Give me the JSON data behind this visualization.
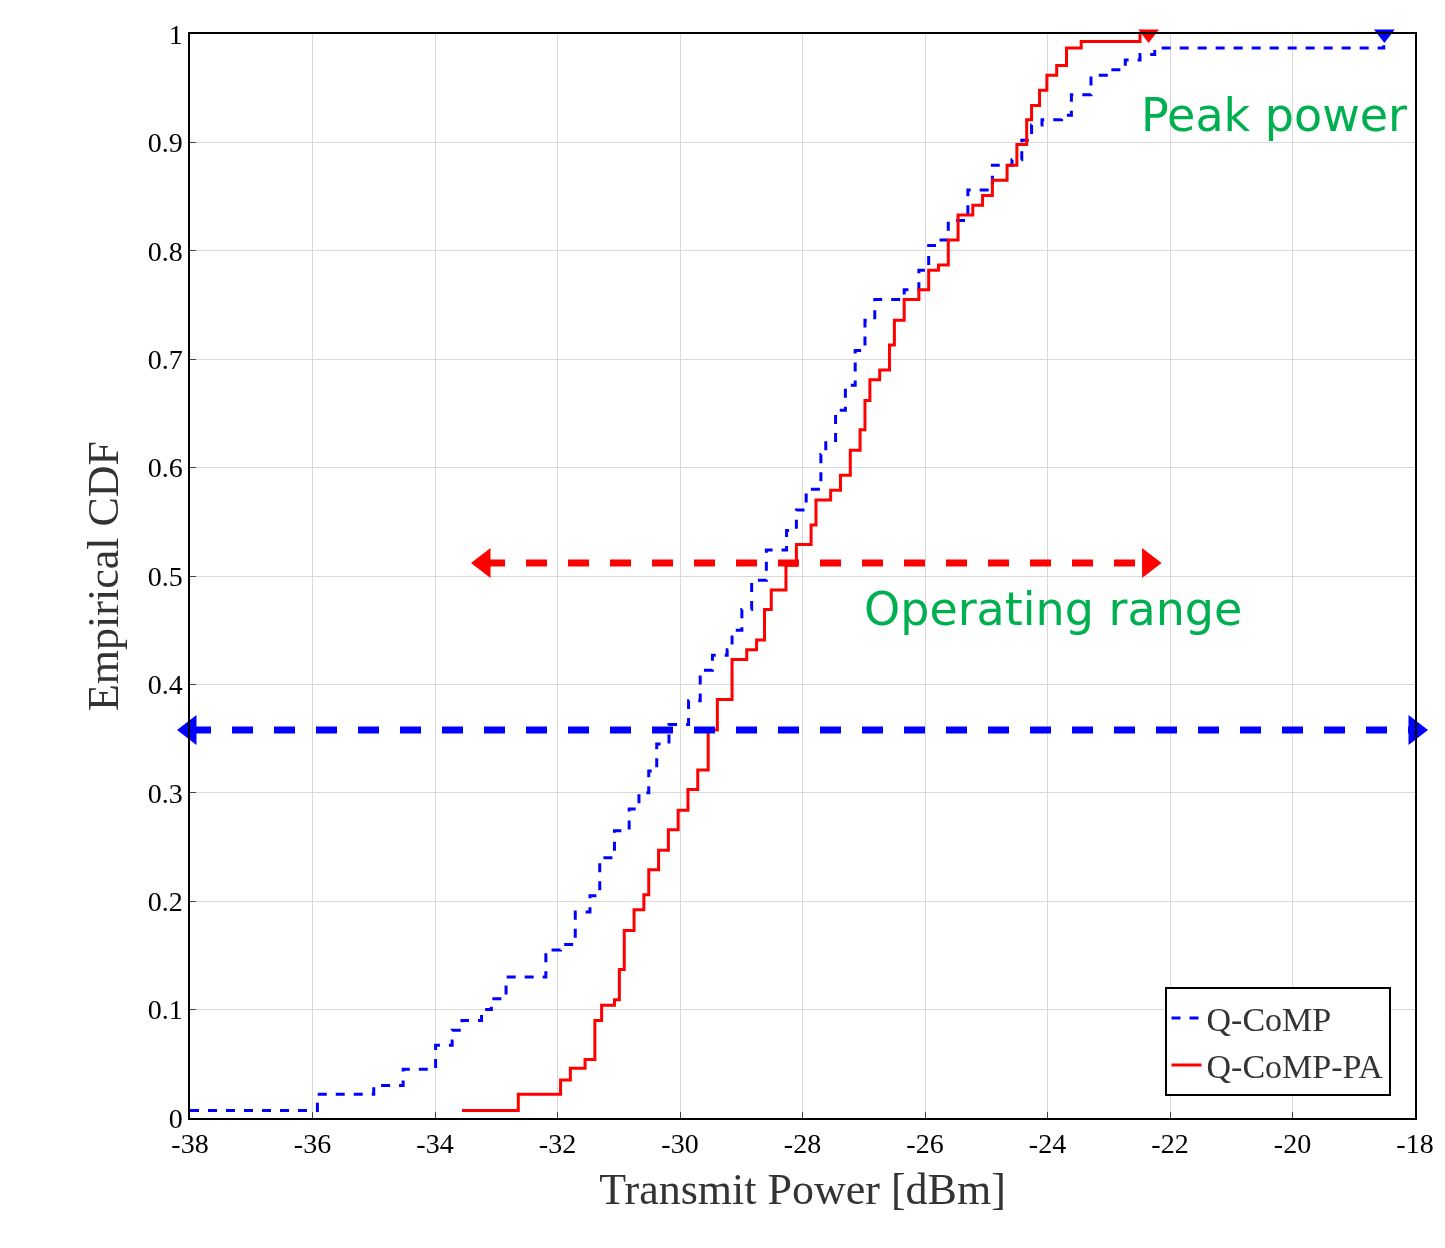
{
  "chart_data": {
    "type": "step",
    "xlabel": "Transmit Power [dBm]",
    "ylabel": "Empirical CDF",
    "xlim": [
      -38,
      -18
    ],
    "xticks": [
      -38,
      -36,
      -34,
      -32,
      -30,
      -28,
      -26,
      -24,
      -22,
      -20,
      -18
    ],
    "ylim": [
      0,
      1
    ],
    "yticks": [
      0,
      0.1,
      0.2,
      0.3,
      0.4,
      0.5,
      0.6,
      0.7,
      0.8,
      0.9,
      1
    ],
    "grid": true,
    "legend": "bottom right",
    "series": [
      {
        "name": "Q-CoMP",
        "color": "#0000ff",
        "line_style": "dashed",
        "x": [
          -38,
          -35.92,
          -35.0,
          -34.52,
          -33.99,
          -33.72,
          -33.56,
          -33.24,
          -33.08,
          -32.84,
          -32.19,
          -31.95,
          -31.71,
          -31.47,
          -31.31,
          -31.07,
          -30.83,
          -30.67,
          -30.51,
          -30.38,
          -30.18,
          -29.86,
          -29.67,
          -29.47,
          -29.23,
          -29.15,
          -28.99,
          -28.83,
          -28.59,
          -28.26,
          -28.1,
          -27.94,
          -27.7,
          -27.62,
          -27.46,
          -27.3,
          -27.14,
          -26.98,
          -26.82,
          -26.34,
          -26.1,
          -25.94,
          -25.78,
          -25.62,
          -25.3,
          -24.9,
          -24.58,
          -24.42,
          -24.26,
          -24.09,
          -23.77,
          -23.61,
          -23.29,
          -22.97,
          -22.73,
          -22.49,
          -22.25,
          -18.51
        ],
        "values": [
          0.007,
          0.022,
          0.03,
          0.045,
          0.067,
          0.081,
          0.09,
          0.1,
          0.11,
          0.13,
          0.155,
          0.16,
          0.19,
          0.205,
          0.24,
          0.265,
          0.285,
          0.3,
          0.32,
          0.345,
          0.363,
          0.385,
          0.413,
          0.427,
          0.432,
          0.45,
          0.469,
          0.496,
          0.524,
          0.542,
          0.561,
          0.58,
          0.612,
          0.625,
          0.653,
          0.676,
          0.708,
          0.736,
          0.755,
          0.764,
          0.782,
          0.805,
          0.81,
          0.828,
          0.856,
          0.879,
          0.884,
          0.902,
          0.916,
          0.921,
          0.925,
          0.944,
          0.962,
          0.967,
          0.976,
          0.981,
          0.987,
          1.0
        ]
      },
      {
        "name": "Q-CoMP-PA",
        "color": "#ff0000",
        "line_style": "solid",
        "x": [
          -33.56,
          -32.64,
          -31.95,
          -31.79,
          -31.55,
          -31.39,
          -31.28,
          -31.07,
          -30.99,
          -30.91,
          -30.75,
          -30.59,
          -30.51,
          -30.35,
          -30.19,
          -30.03,
          -29.87,
          -29.71,
          -29.54,
          -29.39,
          -29.15,
          -28.91,
          -28.75,
          -28.62,
          -28.51,
          -28.27,
          -28.1,
          -27.86,
          -27.78,
          -27.54,
          -27.38,
          -27.22,
          -27.06,
          -26.98,
          -26.9,
          -26.74,
          -26.58,
          -26.5,
          -26.34,
          -26.1,
          -25.94,
          -25.78,
          -25.62,
          -25.46,
          -25.22,
          -25.06,
          -24.9,
          -24.66,
          -24.5,
          -24.34,
          -24.26,
          -24.13,
          -24.01,
          -23.85,
          -23.69,
          -23.45,
          -22.49
        ],
        "values": [
          0.007,
          0.022,
          0.035,
          0.046,
          0.054,
          0.09,
          0.104,
          0.109,
          0.137,
          0.173,
          0.192,
          0.206,
          0.229,
          0.247,
          0.266,
          0.284,
          0.303,
          0.321,
          0.358,
          0.386,
          0.423,
          0.432,
          0.441,
          0.469,
          0.487,
          0.51,
          0.529,
          0.547,
          0.57,
          0.579,
          0.593,
          0.616,
          0.635,
          0.662,
          0.681,
          0.69,
          0.713,
          0.736,
          0.755,
          0.764,
          0.782,
          0.787,
          0.81,
          0.833,
          0.842,
          0.851,
          0.865,
          0.879,
          0.898,
          0.921,
          0.934,
          0.948,
          0.962,
          0.971,
          0.987,
          0.993,
          1.0
        ]
      },
      {
        "type": "line",
        "color": "#ff0000",
        "line_style": "dashed",
        "marker": "triangle",
        "x": [
          -33.2,
          -22.35
        ],
        "values": [
          0.512,
          0.512
        ]
      },
      {
        "type": "line",
        "color": "#0000ff",
        "line_style": "dashed",
        "marker": "triangle",
        "x": [
          -38,
          -18
        ],
        "values": [
          0.358,
          0.358
        ]
      },
      {
        "type": "scatter",
        "color": "#ff0000",
        "marker": "triangle",
        "x": [
          -22.35
        ],
        "values": [
          1.0
        ]
      },
      {
        "type": "scatter",
        "color": "#0000ff",
        "marker": "triangle",
        "x": [
          -18.5
        ],
        "values": [
          1.0
        ]
      }
    ],
    "annotations": [
      "Peak power",
      "Operating range"
    ]
  }
}
